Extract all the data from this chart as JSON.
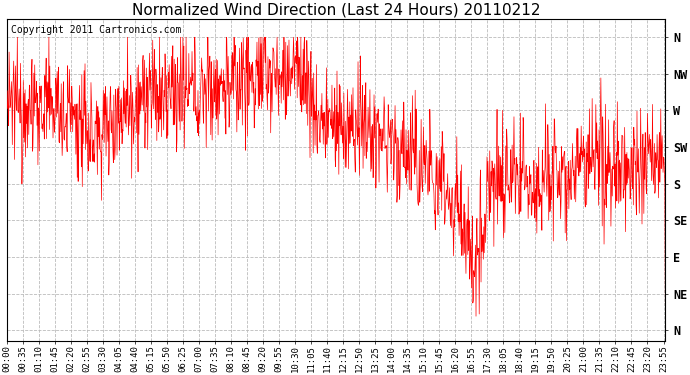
{
  "title": "Normalized Wind Direction (Last 24 Hours) 20110212",
  "copyright_text": "Copyright 2011 Cartronics.com",
  "line_color": "#ff0000",
  "background_color": "#ffffff",
  "grid_color": "#bbbbbb",
  "y_tick_labels": [
    "N",
    "NW",
    "W",
    "SW",
    "S",
    "SE",
    "E",
    "NE",
    "N"
  ],
  "y_tick_values": [
    8,
    7,
    6,
    5,
    4,
    3,
    2,
    1,
    0
  ],
  "ylim": [
    -0.3,
    8.5
  ],
  "title_fontsize": 11,
  "tick_fontsize": 6.5,
  "copyright_fontsize": 7,
  "n_points": 1440,
  "tick_interval_minutes": 35
}
